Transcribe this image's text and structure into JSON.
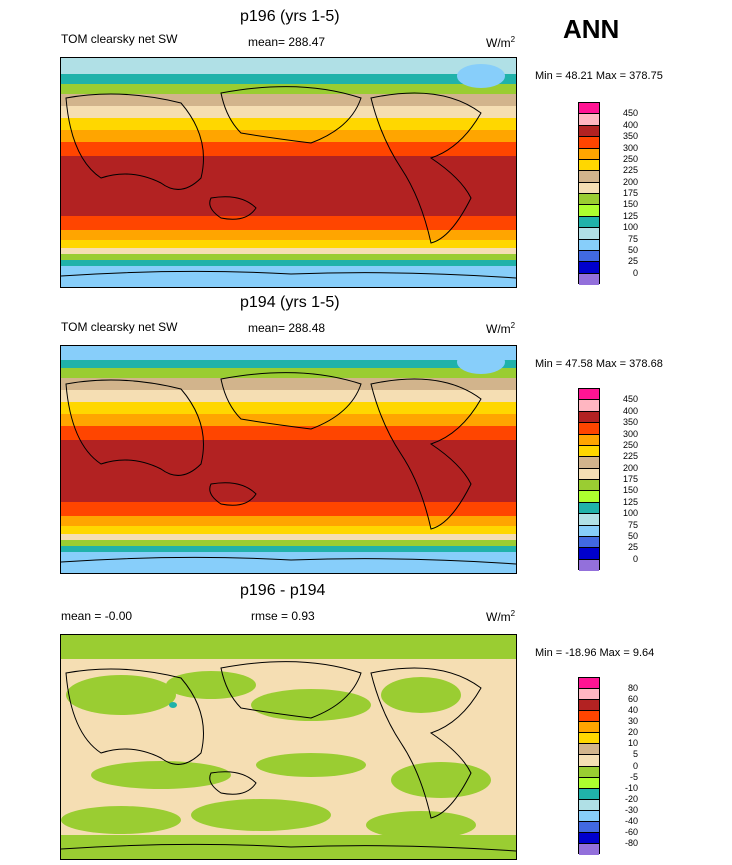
{
  "season": "ANN",
  "panels": [
    {
      "title": "p196 (yrs 1-5)",
      "variable": "TOM clearsky net SW",
      "stat": "mean= 288.47",
      "units": "W/m",
      "units_exp": "2",
      "minmax": "Min =  48.21 Max = 378.75"
    },
    {
      "title": "p194 (yrs 1-5)",
      "variable": "TOM clearsky net SW",
      "stat": "mean= 288.48",
      "units": "W/m",
      "units_exp": "2",
      "minmax": "Min =  47.58 Max = 378.68"
    },
    {
      "title": "p196 - p194",
      "variable": "mean =  -0.00",
      "stat": "rmse =   0.93",
      "units": "W/m",
      "units_exp": "2",
      "minmax": "Min = -18.96 Max =   9.64"
    }
  ],
  "colorbar_abs": {
    "labels": [
      "450",
      "400",
      "350",
      "300",
      "250",
      "225",
      "200",
      "175",
      "150",
      "125",
      "100",
      "75",
      "50",
      "25",
      "0"
    ],
    "colors": [
      "#ff1493",
      "#ffb6c1",
      "#b22222",
      "#ff4500",
      "#ffa500",
      "#ffd700",
      "#d2b48c",
      "#f5deb3",
      "#9acd32",
      "#adff2f",
      "#20b2aa",
      "#b0e0e6",
      "#87cefa",
      "#4169e1",
      "#0000cd",
      "#9370db"
    ]
  },
  "colorbar_diff": {
    "labels": [
      "80",
      "60",
      "40",
      "30",
      "20",
      "10",
      "5",
      "0",
      "-5",
      "-10",
      "-20",
      "-30",
      "-40",
      "-60",
      "-80"
    ],
    "colors": [
      "#ff1493",
      "#ffb6c1",
      "#b22222",
      "#ff4500",
      "#ffa500",
      "#ffd700",
      "#d2b48c",
      "#f5deb3",
      "#9acd32",
      "#adff2f",
      "#20b2aa",
      "#b0e0e6",
      "#87cefa",
      "#4169e1",
      "#0000cd",
      "#9370db"
    ]
  },
  "chart_data": [
    {
      "type": "heatmap",
      "title": "p196 (yrs 1-5)",
      "subtitle": "TOM clearsky net SW",
      "mean": 288.47,
      "min": 48.21,
      "max": 378.75,
      "units": "W/m2",
      "levels": [
        0,
        25,
        50,
        75,
        100,
        125,
        150,
        175,
        200,
        225,
        250,
        300,
        350,
        400,
        450
      ]
    },
    {
      "type": "heatmap",
      "title": "p194 (yrs 1-5)",
      "subtitle": "TOM clearsky net SW",
      "mean": 288.48,
      "min": 47.58,
      "max": 378.68,
      "units": "W/m2",
      "levels": [
        0,
        25,
        50,
        75,
        100,
        125,
        150,
        175,
        200,
        225,
        250,
        300,
        350,
        400,
        450
      ]
    },
    {
      "type": "heatmap",
      "title": "p196 - p194",
      "mean": -0.0,
      "rmse": 0.93,
      "min": -18.96,
      "max": 9.64,
      "units": "W/m2",
      "levels": [
        -80,
        -60,
        -40,
        -30,
        -20,
        -10,
        -5,
        0,
        5,
        10,
        20,
        30,
        40,
        60,
        80
      ]
    }
  ]
}
